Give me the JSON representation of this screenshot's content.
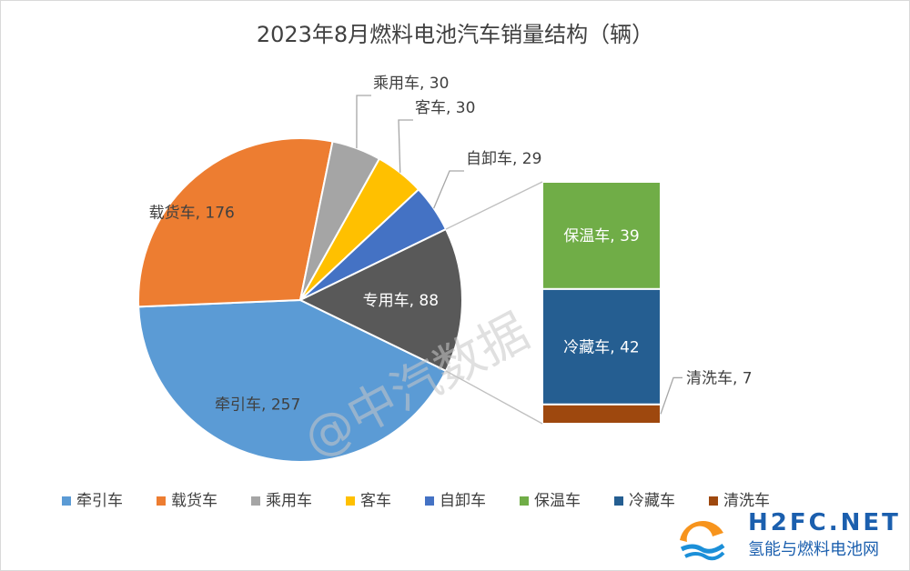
{
  "chart_data": {
    "type": "pie",
    "title": "2023年8月燃料电池汽车销量结构（辆）",
    "slices": [
      {
        "name": "牵引车",
        "value": 257,
        "color": "#5b9bd5",
        "label": "牵引车, 257"
      },
      {
        "name": "载货车",
        "value": 176,
        "color": "#ed7d31",
        "label": "载货车, 176"
      },
      {
        "name": "乘用车",
        "value": 30,
        "color": "#a5a5a5",
        "label": "乘用车, 30"
      },
      {
        "name": "客车",
        "value": 30,
        "color": "#ffc000",
        "label": "客车, 30"
      },
      {
        "name": "自卸车",
        "value": 29,
        "color": "#4472c4",
        "label": "自卸车, 29"
      },
      {
        "name": "专用车",
        "value": 88,
        "color": "#595959",
        "label": "专用车, 88"
      }
    ],
    "breakdown_of": "专用车",
    "breakdown": [
      {
        "name": "保温车",
        "value": 39,
        "color": "#70ad47",
        "label": "保温车, 39"
      },
      {
        "name": "冷藏车",
        "value": 42,
        "color": "#255e91",
        "label": "冷藏车, 42"
      },
      {
        "name": "清洗车",
        "value": 7,
        "color": "#9e480e",
        "label": "清洗车, 7"
      }
    ],
    "legend": {
      "placement": "bottom",
      "entries": [
        {
          "name": "牵引车",
          "color": "#5b9bd5"
        },
        {
          "name": "载货车",
          "color": "#ed7d31"
        },
        {
          "name": "乘用车",
          "color": "#a5a5a5"
        },
        {
          "name": "客车",
          "color": "#ffc000"
        },
        {
          "name": "自卸车",
          "color": "#4472c4"
        },
        {
          "name": "保温车",
          "color": "#70ad47"
        },
        {
          "name": "冷藏车",
          "color": "#255e91"
        },
        {
          "name": "清洗车",
          "color": "#9e480e"
        }
      ]
    }
  },
  "watermark": "@中汽数据",
  "logo": {
    "brand": "H2FC.NET",
    "tagline": "氢能与燃料电池网"
  }
}
